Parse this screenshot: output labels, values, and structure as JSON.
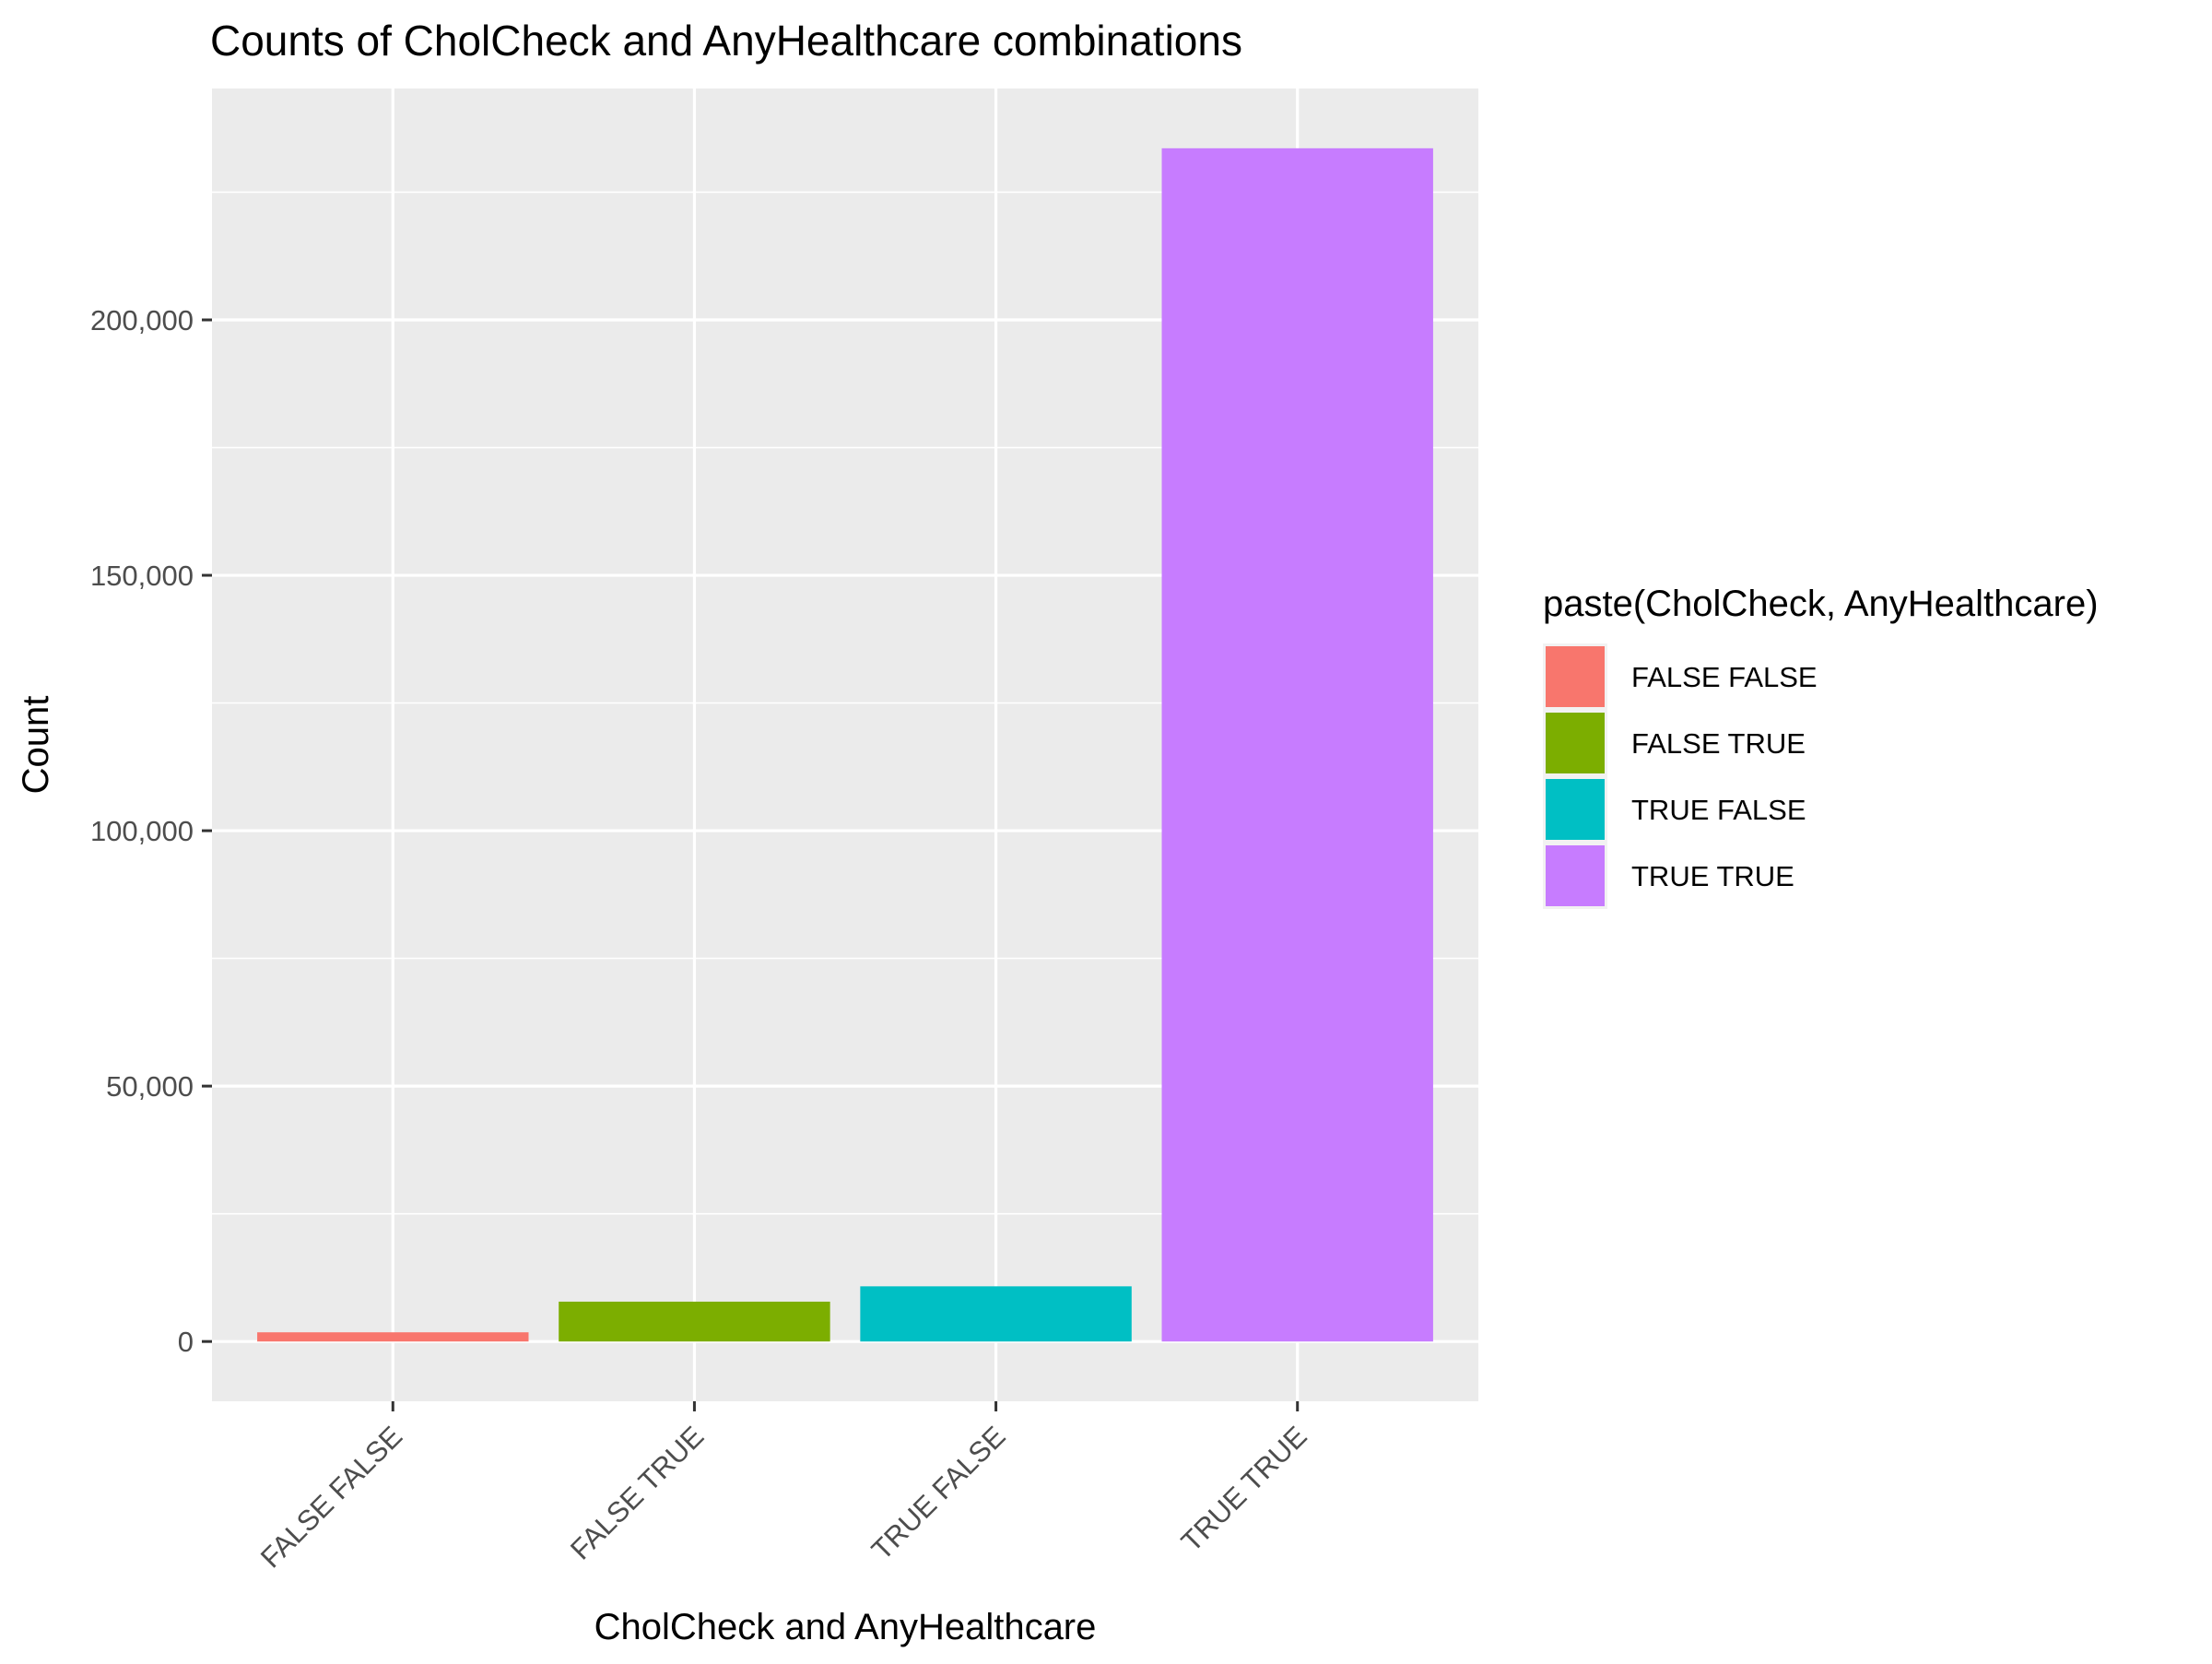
{
  "chart_data": {
    "type": "bar",
    "title": "Counts of CholCheck and AnyHealthcare combinations",
    "xlabel": "CholCheck and AnyHealthcare",
    "ylabel": "Count",
    "categories": [
      "FALSE FALSE",
      "FALSE TRUE",
      "TRUE FALSE",
      "TRUE TRUE"
    ],
    "values": [
      1800,
      7800,
      10800,
      233600
    ],
    "colors": [
      "#F8766D",
      "#7CAE00",
      "#00BFC4",
      "#C77CFF"
    ],
    "ylim": [
      -11700,
      245300
    ],
    "y_ticks": [
      0,
      50000,
      100000,
      150000,
      200000
    ],
    "y_tick_labels": [
      "0",
      "50,000",
      "100,000",
      "150,000",
      "200,000"
    ],
    "x_tick_rotation": 45,
    "grid": true,
    "panel_background": "#EBEBEB",
    "legend": {
      "title": "paste(CholCheck, AnyHealthcare)",
      "placement": "right",
      "entries": [
        "FALSE FALSE",
        "FALSE TRUE",
        "TRUE FALSE",
        "TRUE TRUE"
      ]
    }
  }
}
